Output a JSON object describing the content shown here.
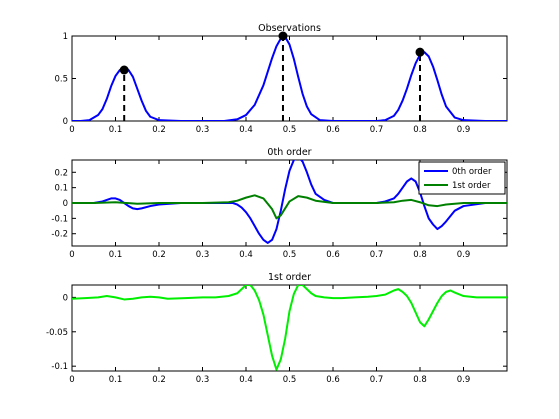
{
  "chart_data": [
    {
      "type": "line",
      "title": "Observations",
      "xlabel": "",
      "ylabel": "",
      "xlim": [
        0,
        1
      ],
      "ylim": [
        0,
        1
      ],
      "xticks": [
        0,
        0.1,
        0.2,
        0.3,
        0.4,
        0.5,
        0.6,
        0.7,
        0.8,
        0.9
      ],
      "xtick_labels": [
        "0",
        "0.1",
        "0.2",
        "0.3",
        "0.4",
        "0.5",
        "0.6",
        "0.7",
        "0.8",
        "0.9"
      ],
      "yticks": [
        0,
        0.5,
        1
      ],
      "ytick_labels": [
        "0",
        "0.5",
        "1"
      ],
      "grid": false,
      "series": [
        {
          "color": "#0000ff",
          "style": "solid",
          "x": [
            0,
            0.02,
            0.04,
            0.06,
            0.07,
            0.08,
            0.09,
            0.1,
            0.11,
            0.12,
            0.13,
            0.14,
            0.15,
            0.16,
            0.17,
            0.18,
            0.2,
            0.25,
            0.3,
            0.35,
            0.38,
            0.4,
            0.42,
            0.44,
            0.45,
            0.46,
            0.47,
            0.48,
            0.485,
            0.49,
            0.5,
            0.51,
            0.52,
            0.53,
            0.54,
            0.55,
            0.57,
            0.6,
            0.65,
            0.7,
            0.72,
            0.74,
            0.75,
            0.76,
            0.77,
            0.78,
            0.79,
            0.8,
            0.81,
            0.82,
            0.83,
            0.84,
            0.85,
            0.86,
            0.88,
            0.9,
            0.95,
            1.0
          ],
          "y": [
            0,
            0,
            0.01,
            0.07,
            0.14,
            0.26,
            0.41,
            0.53,
            0.6,
            0.62,
            0.6,
            0.52,
            0.38,
            0.24,
            0.12,
            0.05,
            0.01,
            0,
            0,
            0,
            0.02,
            0.07,
            0.19,
            0.42,
            0.58,
            0.74,
            0.88,
            0.97,
            1,
            0.99,
            0.9,
            0.73,
            0.52,
            0.32,
            0.17,
            0.08,
            0.01,
            0,
            0,
            0,
            0.01,
            0.06,
            0.13,
            0.24,
            0.38,
            0.54,
            0.68,
            0.78,
            0.81,
            0.76,
            0.64,
            0.48,
            0.31,
            0.17,
            0.04,
            0.01,
            0,
            0
          ]
        }
      ],
      "markers": {
        "x": [
          0.12,
          0.485,
          0.8
        ],
        "y": [
          0.6,
          1.0,
          0.81
        ],
        "color": "#000000",
        "stems": "dashed"
      }
    },
    {
      "type": "line",
      "title": "0th order",
      "xlabel": "",
      "ylabel": "",
      "xlim": [
        0,
        1
      ],
      "ylim": [
        -0.28,
        0.28
      ],
      "xticks": [
        0,
        0.1,
        0.2,
        0.3,
        0.4,
        0.5,
        0.6,
        0.7,
        0.8,
        0.9
      ],
      "xtick_labels": [
        "0",
        "0.1",
        "0.2",
        "0.3",
        "0.4",
        "0.5",
        "0.6",
        "0.7",
        "0.8",
        "0.9"
      ],
      "yticks": [
        -0.2,
        -0.1,
        0,
        0.1,
        0.2
      ],
      "ytick_labels": [
        "-0.2",
        "-0.1",
        "0",
        "0.1",
        "0.2"
      ],
      "grid": false,
      "legend": {
        "position": "top-right"
      },
      "series": [
        {
          "name": "0th order",
          "color": "#0000ff",
          "x": [
            0,
            0.05,
            0.07,
            0.08,
            0.09,
            0.1,
            0.11,
            0.12,
            0.13,
            0.14,
            0.15,
            0.16,
            0.18,
            0.2,
            0.25,
            0.3,
            0.35,
            0.37,
            0.38,
            0.39,
            0.4,
            0.41,
            0.42,
            0.43,
            0.44,
            0.45,
            0.46,
            0.47,
            0.48,
            0.49,
            0.5,
            0.51,
            0.52,
            0.53,
            0.54,
            0.55,
            0.56,
            0.58,
            0.6,
            0.65,
            0.7,
            0.72,
            0.74,
            0.75,
            0.76,
            0.77,
            0.78,
            0.79,
            0.8,
            0.81,
            0.82,
            0.83,
            0.84,
            0.85,
            0.86,
            0.88,
            0.9,
            0.95,
            1.0
          ],
          "y": [
            0,
            0,
            0.01,
            0.02,
            0.03,
            0.03,
            0.02,
            0,
            -0.02,
            -0.035,
            -0.04,
            -0.035,
            -0.02,
            -0.01,
            0,
            0,
            0,
            0,
            -0.01,
            -0.03,
            -0.06,
            -0.1,
            -0.15,
            -0.2,
            -0.24,
            -0.26,
            -0.24,
            -0.17,
            -0.05,
            0.09,
            0.21,
            0.28,
            0.3,
            0.27,
            0.2,
            0.12,
            0.06,
            0.02,
            0,
            0,
            0,
            0.01,
            0.03,
            0.06,
            0.1,
            0.14,
            0.16,
            0.14,
            0.07,
            -0.02,
            -0.1,
            -0.14,
            -0.17,
            -0.15,
            -0.12,
            -0.05,
            -0.02,
            0,
            0
          ]
        },
        {
          "name": "1st order",
          "color": "#008000",
          "x": [
            0,
            0.05,
            0.1,
            0.15,
            0.2,
            0.3,
            0.36,
            0.38,
            0.4,
            0.42,
            0.44,
            0.46,
            0.47,
            0.48,
            0.5,
            0.52,
            0.54,
            0.56,
            0.6,
            0.7,
            0.74,
            0.76,
            0.78,
            0.8,
            0.82,
            0.84,
            0.86,
            0.9,
            1.0
          ],
          "y": [
            0,
            0,
            0.005,
            -0.005,
            0,
            0,
            0.005,
            0.015,
            0.035,
            0.05,
            0.03,
            -0.04,
            -0.1,
            -0.08,
            0.01,
            0.045,
            0.035,
            0.015,
            0,
            0,
            0.005,
            0.015,
            0.02,
            0.005,
            -0.015,
            -0.02,
            -0.01,
            0,
            0
          ]
        }
      ]
    },
    {
      "type": "line",
      "title": "1st order",
      "xlabel": "",
      "ylabel": "",
      "xlim": [
        0,
        1
      ],
      "ylim": [
        -0.107,
        0.018
      ],
      "xticks": [
        0,
        0.1,
        0.2,
        0.3,
        0.4,
        0.5,
        0.6,
        0.7,
        0.8,
        0.9
      ],
      "xtick_labels": [
        "0",
        "0.1",
        "0.2",
        "0.3",
        "0.4",
        "0.5",
        "0.6",
        "0.7",
        "0.8",
        "0.9"
      ],
      "yticks": [
        -0.1,
        -0.05,
        0
      ],
      "ytick_labels": [
        "-0.1",
        "-0.05",
        "0"
      ],
      "grid": false,
      "series": [
        {
          "color": "#00ee00",
          "x": [
            0,
            0.03,
            0.06,
            0.08,
            0.1,
            0.12,
            0.14,
            0.16,
            0.18,
            0.2,
            0.22,
            0.26,
            0.3,
            0.33,
            0.36,
            0.38,
            0.39,
            0.4,
            0.41,
            0.42,
            0.43,
            0.44,
            0.45,
            0.46,
            0.47,
            0.48,
            0.49,
            0.5,
            0.51,
            0.52,
            0.53,
            0.54,
            0.55,
            0.56,
            0.58,
            0.6,
            0.62,
            0.65,
            0.68,
            0.7,
            0.72,
            0.73,
            0.74,
            0.75,
            0.76,
            0.77,
            0.78,
            0.79,
            0.8,
            0.81,
            0.82,
            0.83,
            0.84,
            0.85,
            0.86,
            0.87,
            0.88,
            0.9,
            0.93,
            0.96,
            1.0
          ],
          "y": [
            -0.002,
            -0.001,
            0,
            0.002,
            0,
            -0.003,
            -0.002,
            0,
            0.001,
            0,
            -0.002,
            -0.001,
            0,
            0,
            0.002,
            0.006,
            0.012,
            0.018,
            0.018,
            0.01,
            -0.004,
            -0.025,
            -0.055,
            -0.085,
            -0.105,
            -0.09,
            -0.06,
            -0.02,
            0.005,
            0.018,
            0.018,
            0.012,
            0.006,
            0.002,
            0,
            -0.001,
            -0.001,
            0,
            0.001,
            0.002,
            0.004,
            0.007,
            0.01,
            0.012,
            0.008,
            0.002,
            -0.008,
            -0.022,
            -0.036,
            -0.042,
            -0.032,
            -0.02,
            -0.008,
            0.002,
            0.008,
            0.01,
            0.007,
            0.002,
            0,
            0,
            0
          ]
        }
      ]
    }
  ]
}
